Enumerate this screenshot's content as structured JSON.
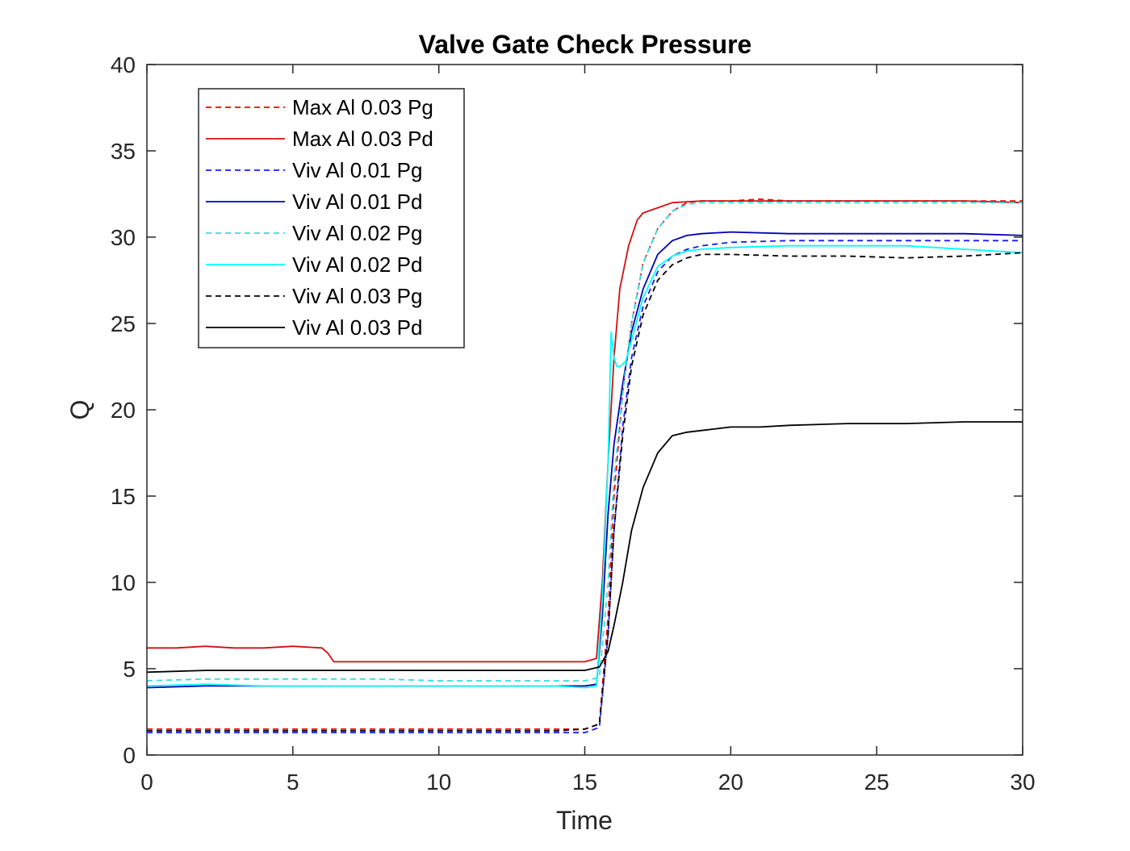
{
  "chart_data": {
    "type": "line",
    "title": "Valve Gate Check Pressure",
    "xlabel": "Time",
    "ylabel": "Q",
    "xlim": [
      0,
      30
    ],
    "ylim": [
      0,
      40
    ],
    "xticks": [
      0,
      5,
      10,
      15,
      20,
      25,
      30
    ],
    "yticks": [
      0,
      5,
      10,
      15,
      20,
      25,
      30,
      35,
      40
    ],
    "grid": false,
    "legend_position": "top-left",
    "series": [
      {
        "name": "Max Al 0.03 Pg",
        "color": "#ff0000",
        "dash": "dashed",
        "x": [
          0,
          2,
          4,
          6,
          8,
          10,
          12,
          14,
          15,
          15.5,
          15.8,
          16.0,
          16.3,
          16.6,
          17.0,
          17.5,
          18.0,
          18.5,
          19,
          20,
          21,
          22,
          24,
          26,
          28,
          30
        ],
        "y": [
          1.5,
          1.5,
          1.5,
          1.5,
          1.5,
          1.5,
          1.5,
          1.5,
          1.5,
          1.8,
          8,
          15,
          21,
          25,
          28.5,
          30.5,
          31.5,
          32,
          32.1,
          32.1,
          32.2,
          32.1,
          32.1,
          32.1,
          32.1,
          32.1
        ]
      },
      {
        "name": "Max Al 0.03 Pd",
        "color": "#d01010",
        "dash": "solid",
        "x": [
          0,
          1,
          2,
          3,
          4,
          5,
          6,
          6.2,
          6.4,
          8,
          10,
          12,
          14,
          15,
          15.4,
          15.6,
          15.8,
          16.0,
          16.2,
          16.5,
          16.8,
          17.0,
          17.5,
          18,
          19,
          20,
          22,
          24,
          26,
          28,
          30
        ],
        "y": [
          6.2,
          6.2,
          6.3,
          6.2,
          6.2,
          6.3,
          6.2,
          5.9,
          5.4,
          5.4,
          5.4,
          5.4,
          5.4,
          5.4,
          5.6,
          10,
          17,
          23,
          27,
          29.5,
          31,
          31.4,
          31.7,
          32,
          32.1,
          32.1,
          32.1,
          32.1,
          32.1,
          32.1,
          32.0
        ]
      },
      {
        "name": "Viv Al 0.01 Pg",
        "color": "#1a1aff",
        "dash": "dashed",
        "x": [
          0,
          2,
          4,
          6,
          8,
          10,
          12,
          14,
          15,
          15.5,
          15.8,
          16.0,
          16.3,
          16.6,
          17.0,
          17.5,
          18.0,
          18.5,
          19,
          20,
          22,
          24,
          26,
          28,
          30
        ],
        "y": [
          1.3,
          1.3,
          1.3,
          1.3,
          1.3,
          1.3,
          1.3,
          1.3,
          1.3,
          1.6,
          7,
          13,
          19,
          23,
          26,
          28,
          28.9,
          29.3,
          29.5,
          29.7,
          29.8,
          29.8,
          29.8,
          29.8,
          29.8
        ]
      },
      {
        "name": "Viv Al 0.01 Pd",
        "color": "#0000b4",
        "dash": "solid",
        "x": [
          0,
          2,
          4,
          6,
          8,
          10,
          12,
          14,
          15,
          15.4,
          15.6,
          15.8,
          16.0,
          16.3,
          16.6,
          17.0,
          17.5,
          18,
          18.5,
          19,
          20,
          22,
          24,
          26,
          28,
          30
        ],
        "y": [
          3.9,
          4.0,
          4.0,
          4.0,
          4.0,
          4.0,
          4.0,
          4.0,
          4.0,
          4.1,
          8,
          14,
          18,
          21.5,
          24.5,
          27,
          29,
          29.8,
          30.1,
          30.2,
          30.3,
          30.2,
          30.2,
          30.2,
          30.2,
          30.1
        ]
      },
      {
        "name": "Viv Al 0.02 Pg",
        "color": "#33dddd",
        "dash": "dashed",
        "x": [
          0,
          2,
          4,
          6,
          8,
          10,
          12,
          14,
          15,
          15.5,
          15.8,
          16.0,
          16.3,
          16.6,
          17.0,
          17.5,
          18.0,
          18.5,
          19,
          20,
          22,
          24,
          26,
          28,
          30
        ],
        "y": [
          4.3,
          4.4,
          4.4,
          4.4,
          4.4,
          4.3,
          4.3,
          4.3,
          4.3,
          4.5,
          10,
          16,
          21,
          25,
          28.5,
          30.5,
          31.5,
          31.9,
          32,
          32,
          32,
          32,
          32,
          32,
          32
        ]
      },
      {
        "name": "Viv Al 0.02 Pd",
        "color": "#00ffff",
        "dash": "solid",
        "x": [
          0,
          2,
          4,
          6,
          8,
          10,
          12,
          14,
          15,
          15.4,
          15.6,
          15.8,
          15.9,
          16.0,
          16.1,
          16.2,
          16.4,
          16.6,
          17.0,
          17.5,
          18,
          18.5,
          19,
          20,
          22,
          24,
          26,
          28,
          30
        ],
        "y": [
          4.0,
          4.1,
          4.0,
          4.0,
          4.0,
          4.0,
          4.0,
          4.0,
          3.9,
          4.0,
          9,
          17,
          24.5,
          23,
          22.5,
          22.5,
          22.8,
          24,
          26.5,
          28.3,
          28.9,
          29.2,
          29.3,
          29.4,
          29.5,
          29.5,
          29.5,
          29.3,
          29.1
        ]
      },
      {
        "name": "Viv Al 0.03 Pg",
        "color": "#000000",
        "dash": "dashed",
        "x": [
          0,
          2,
          4,
          6,
          8,
          10,
          12,
          14,
          15,
          15.5,
          15.8,
          16.0,
          16.3,
          16.6,
          17.0,
          17.5,
          18.0,
          18.5,
          19,
          20,
          22,
          24,
          26,
          28,
          30
        ],
        "y": [
          1.4,
          1.4,
          1.4,
          1.4,
          1.4,
          1.4,
          1.4,
          1.4,
          1.5,
          1.8,
          7,
          13,
          18.5,
          22.5,
          25.5,
          27.5,
          28.4,
          28.8,
          29,
          29,
          28.9,
          28.9,
          28.8,
          28.9,
          29.1
        ]
      },
      {
        "name": "Viv Al 0.03 Pd",
        "color": "#000000",
        "dash": "solid",
        "x": [
          0,
          2,
          4,
          6,
          8,
          10,
          12,
          14,
          15,
          15.5,
          15.8,
          16.0,
          16.3,
          16.6,
          17.0,
          17.5,
          18.0,
          18.5,
          19,
          20,
          21,
          22,
          24,
          26,
          28,
          30
        ],
        "y": [
          4.8,
          4.9,
          4.9,
          4.9,
          4.9,
          4.9,
          4.9,
          4.9,
          4.9,
          5.1,
          6,
          7.5,
          10,
          13,
          15.5,
          17.5,
          18.5,
          18.7,
          18.8,
          19,
          19,
          19.1,
          19.2,
          19.2,
          19.3,
          19.3
        ]
      }
    ]
  }
}
